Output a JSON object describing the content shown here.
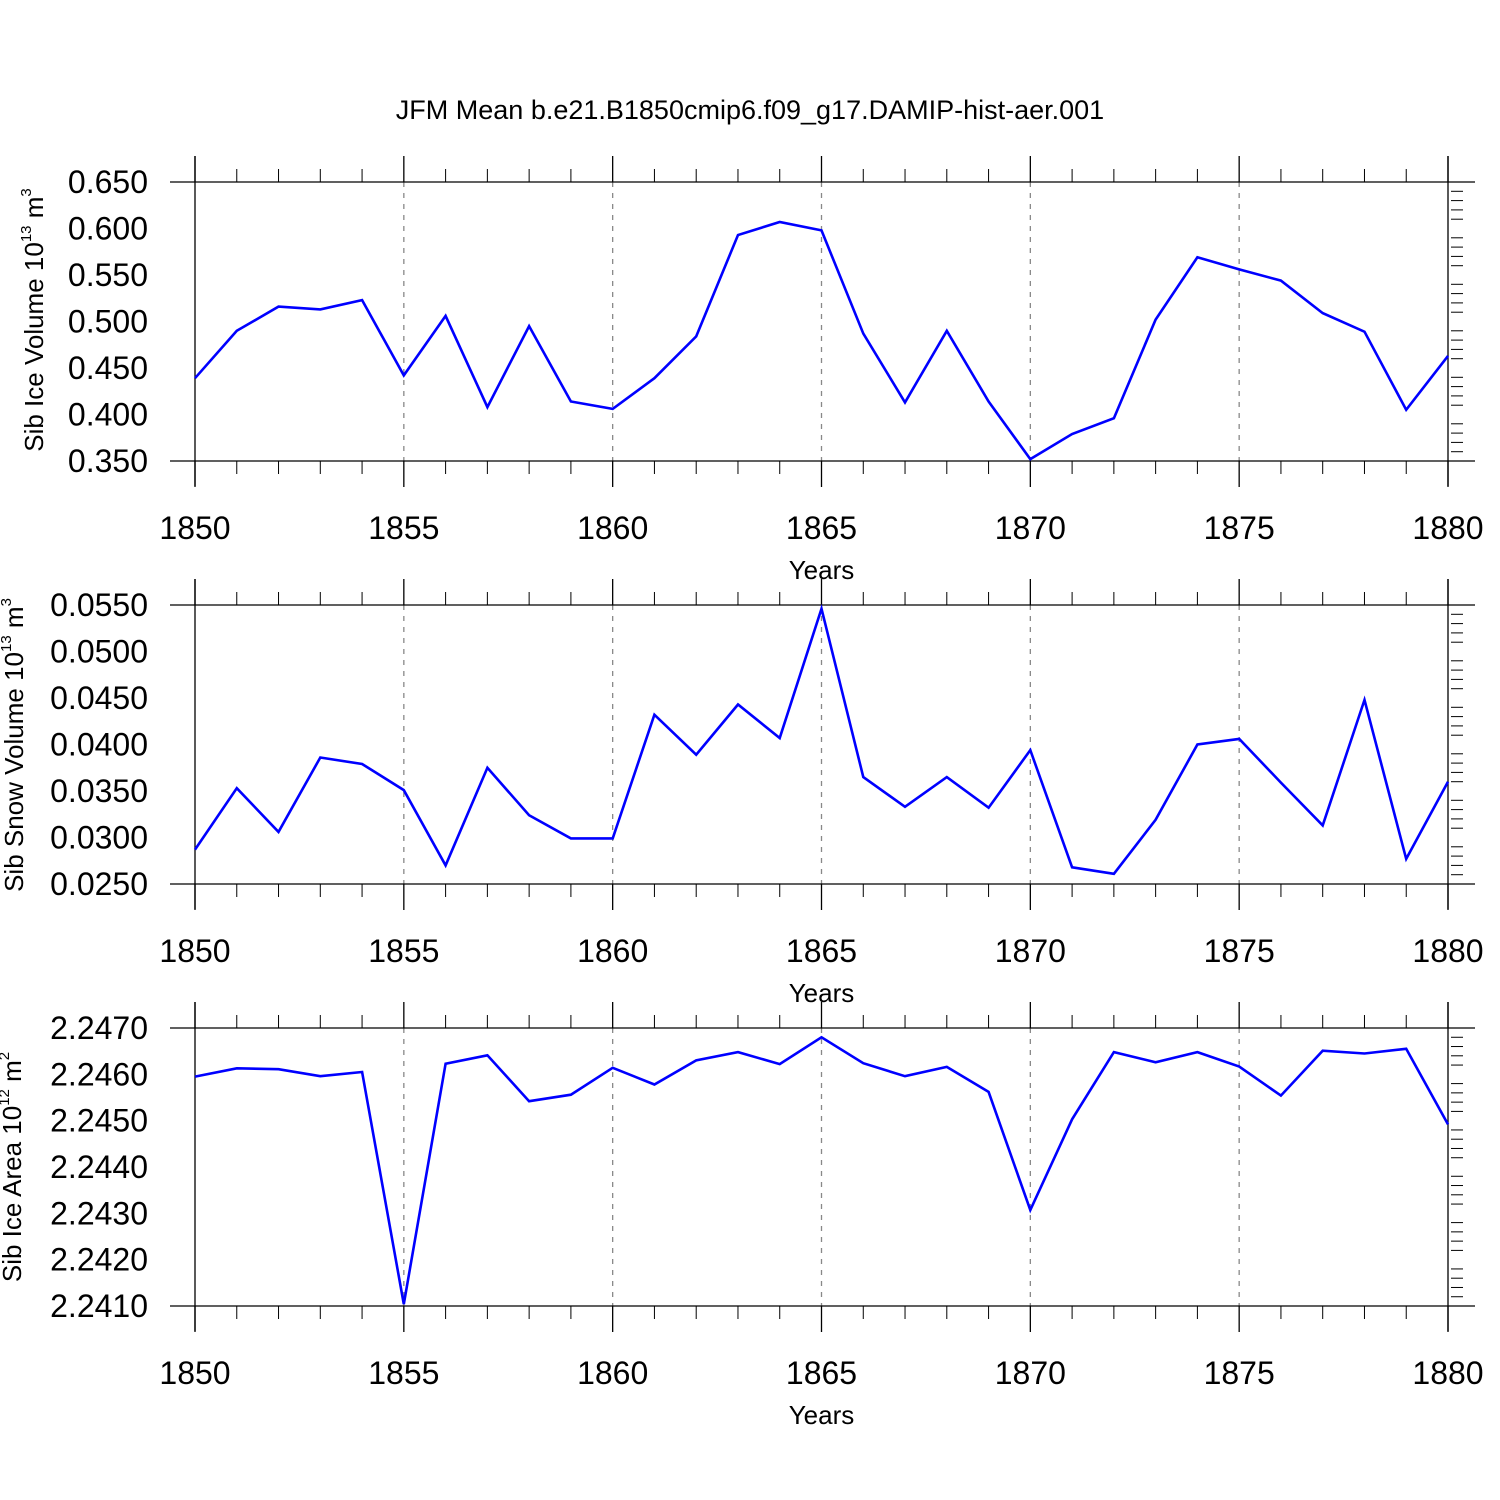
{
  "figure_title": "JFM Mean b.e21.B1850cmip6.f09_g17.DAMIP-hist-aer.001",
  "colors": {
    "line": "#0000ff",
    "grid": "#888888",
    "axes": "#000000"
  },
  "chart_data": [
    {
      "type": "line",
      "title": "JFM Mean b.e21.B1850cmip6.f09_g17.DAMIP-hist-aer.001",
      "xlabel": "Years",
      "ylabel": {
        "main": "Sib Ice Volume 10",
        "exp": "13",
        "mid": " m",
        "unit_exp": "3"
      },
      "xlim": [
        1850,
        1880
      ],
      "ylim": [
        0.35,
        0.65
      ],
      "xticks": [
        "1850",
        "1855",
        "1860",
        "1865",
        "1870",
        "1875",
        "1880"
      ],
      "yticks": [
        "0.650",
        "0.600",
        "0.550",
        "0.500",
        "0.450",
        "0.400",
        "0.350"
      ],
      "grid": "vertical dashed at major x ticks",
      "x": [
        1850,
        1851,
        1852,
        1853,
        1854,
        1855,
        1856,
        1857,
        1858,
        1859,
        1860,
        1861,
        1862,
        1863,
        1864,
        1865,
        1866,
        1867,
        1868,
        1869,
        1870,
        1871,
        1872,
        1873,
        1874,
        1875,
        1876,
        1877,
        1878,
        1879,
        1880
      ],
      "y": [
        0.439,
        0.49,
        0.516,
        0.513,
        0.523,
        0.442,
        0.506,
        0.408,
        0.495,
        0.414,
        0.406,
        0.439,
        0.484,
        0.593,
        0.607,
        0.598,
        0.487,
        0.413,
        0.49,
        0.414,
        0.352,
        0.379,
        0.396,
        0.502,
        0.569,
        0.556,
        0.544,
        0.509,
        0.489,
        0.405,
        0.463
      ]
    },
    {
      "type": "line",
      "xlabel": "Years",
      "ylabel": {
        "main": "Sib Snow Volume 10",
        "exp": "13",
        "mid": " m",
        "unit_exp": "3"
      },
      "xlim": [
        1850,
        1880
      ],
      "ylim": [
        0.025,
        0.055
      ],
      "xticks": [
        "1850",
        "1855",
        "1860",
        "1865",
        "1870",
        "1875",
        "1880"
      ],
      "yticks": [
        "0.0550",
        "0.0500",
        "0.0450",
        "0.0400",
        "0.0350",
        "0.0300",
        "0.0250"
      ],
      "grid": "vertical dashed at major x ticks",
      "x": [
        1850,
        1851,
        1852,
        1853,
        1854,
        1855,
        1856,
        1857,
        1858,
        1859,
        1860,
        1861,
        1862,
        1863,
        1864,
        1865,
        1866,
        1867,
        1868,
        1869,
        1870,
        1871,
        1872,
        1873,
        1874,
        1875,
        1876,
        1877,
        1878,
        1879,
        1880
      ],
      "y": [
        0.0287,
        0.0353,
        0.0306,
        0.0386,
        0.0379,
        0.0351,
        0.027,
        0.0375,
        0.0324,
        0.0299,
        0.0299,
        0.0432,
        0.0389,
        0.0443,
        0.0407,
        0.0546,
        0.0365,
        0.0333,
        0.0365,
        0.0332,
        0.0394,
        0.0268,
        0.0261,
        0.0319,
        0.04,
        0.0406,
        0.0359,
        0.0313,
        0.0448,
        0.0277,
        0.036
      ]
    },
    {
      "type": "line",
      "xlabel": "Years",
      "ylabel": {
        "main": "Sib Ice Area 10",
        "exp": "12",
        "mid": " m",
        "unit_exp": "2"
      },
      "xlim": [
        1850,
        1880
      ],
      "ylim": [
        2.241,
        2.247
      ],
      "xticks": [
        "1850",
        "1855",
        "1860",
        "1865",
        "1870",
        "1875",
        "1880"
      ],
      "yticks": [
        "2.2470",
        "2.2460",
        "2.2450",
        "2.2440",
        "2.2430",
        "2.2420",
        "2.2410"
      ],
      "grid": "vertical dashed at major x ticks",
      "x": [
        1850,
        1851,
        1852,
        1853,
        1854,
        1855,
        1856,
        1857,
        1858,
        1859,
        1860,
        1861,
        1862,
        1863,
        1864,
        1865,
        1866,
        1867,
        1868,
        1869,
        1870,
        1871,
        1872,
        1873,
        1874,
        1875,
        1876,
        1877,
        1878,
        1879,
        1880
      ],
      "y": [
        2.24595,
        2.24613,
        2.24611,
        2.24596,
        2.24605,
        2.24104,
        2.24623,
        2.24641,
        2.24542,
        2.24556,
        2.24614,
        2.24578,
        2.2463,
        2.24648,
        2.24622,
        2.2468,
        2.24624,
        2.24596,
        2.24616,
        2.24562,
        2.24307,
        2.24503,
        2.24648,
        2.24626,
        2.24648,
        2.24617,
        2.24554,
        2.24651,
        2.24645,
        2.24655,
        2.24492
      ]
    }
  ]
}
